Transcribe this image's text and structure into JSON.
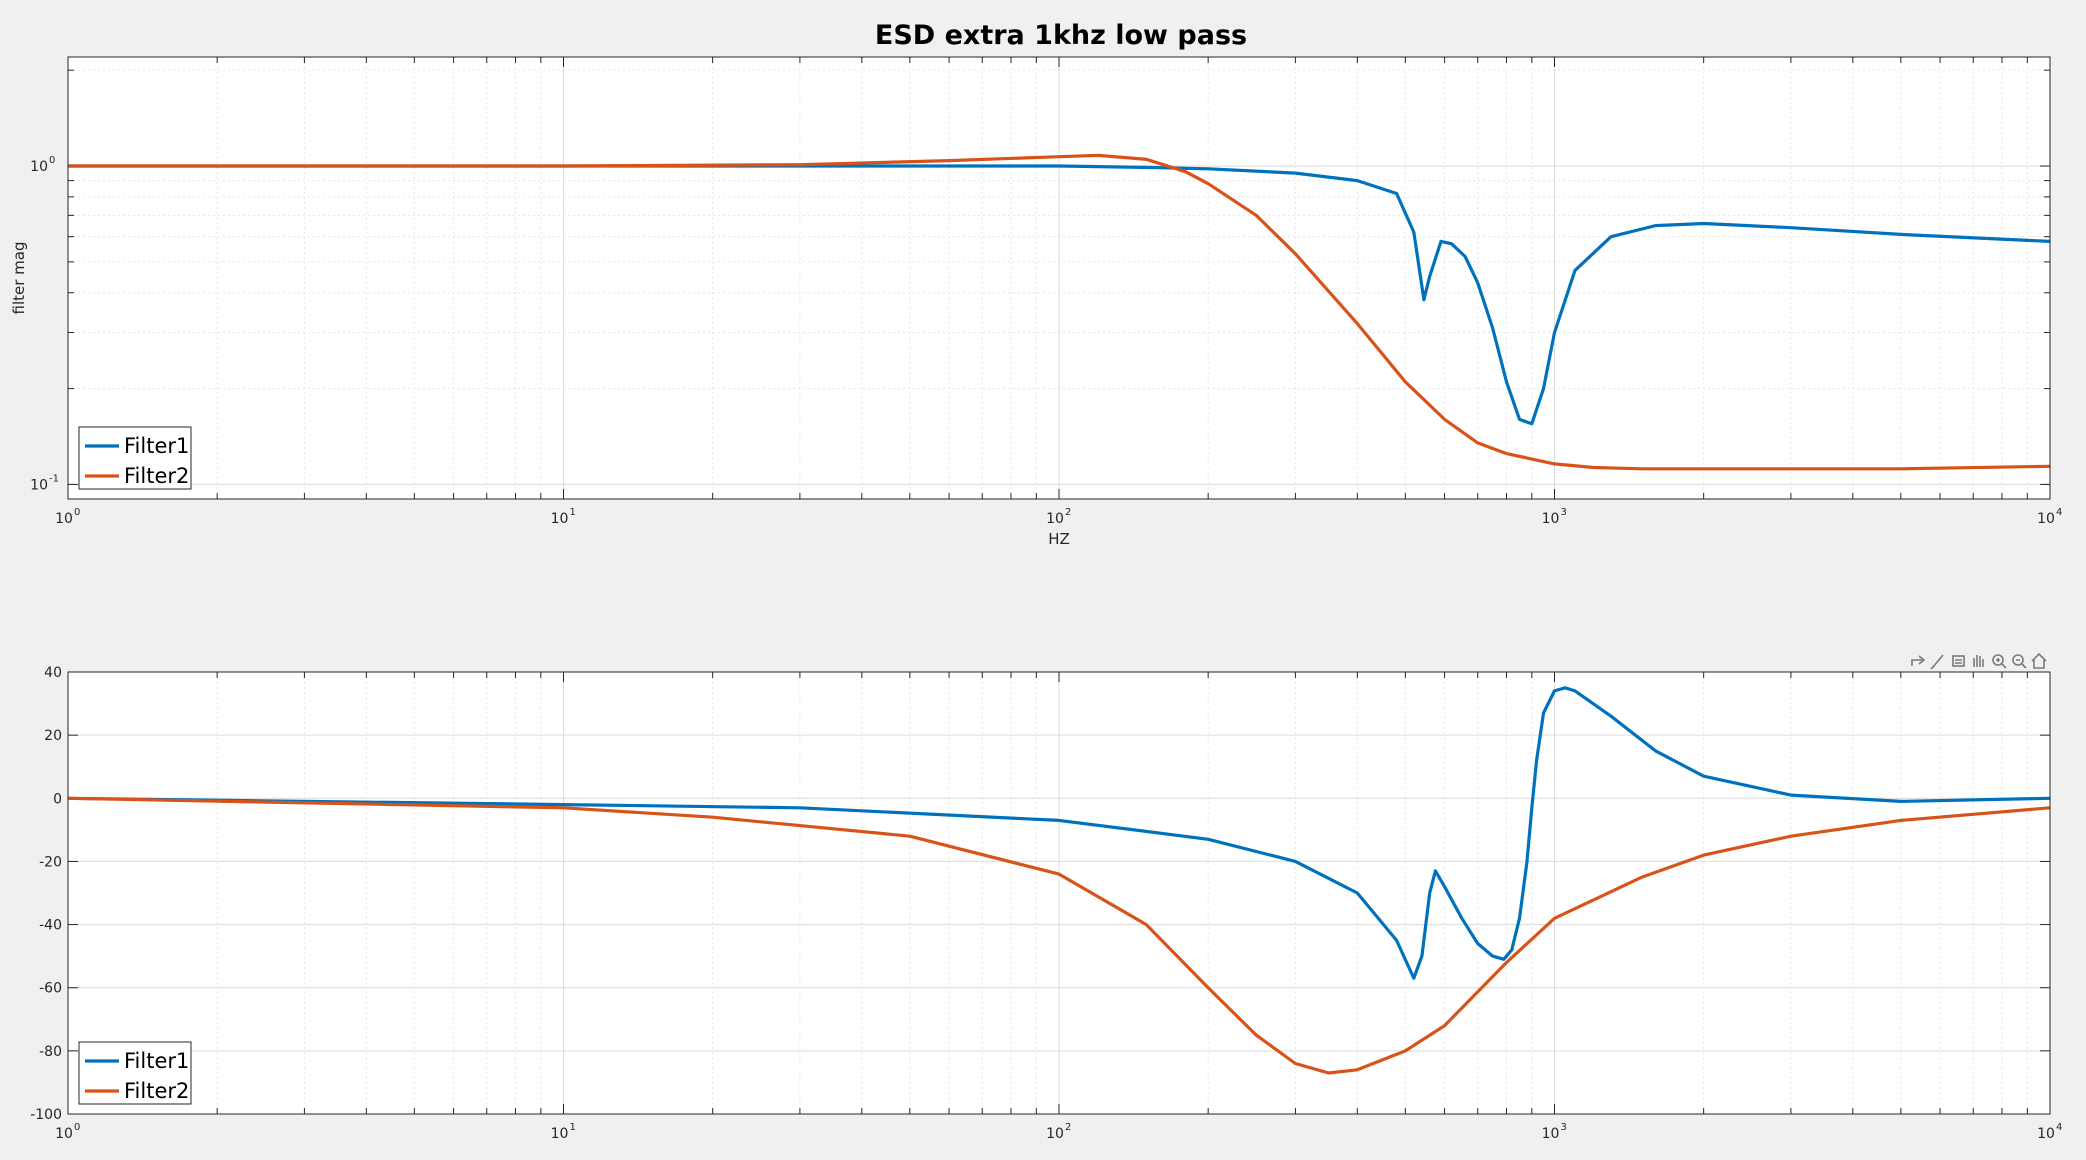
{
  "figure": {
    "title": "ESD extra 1khz low pass"
  },
  "colors": {
    "filter1": "#0072BD",
    "filter2": "#D95319",
    "grid": "#dcdcdc",
    "axes_bg": "#ffffff",
    "figure_bg": "#f0f0f0"
  },
  "toolbar": {
    "icons": [
      "export-icon",
      "brush-icon",
      "datatip-icon",
      "pan-icon",
      "zoom-in-icon",
      "zoom-out-icon",
      "home-icon"
    ]
  },
  "chart_data": [
    {
      "type": "line",
      "title": "ESD extra 1khz low pass",
      "xlabel": "HZ",
      "ylabel": "filter mag",
      "xscale": "log",
      "yscale": "log",
      "xlim": [
        1,
        10000
      ],
      "ylim": [
        0.09,
        2.2
      ],
      "x_ticks": [
        {
          "base": "10",
          "exp": "0"
        },
        {
          "base": "10",
          "exp": "1"
        },
        {
          "base": "10",
          "exp": "2"
        },
        {
          "base": "10",
          "exp": "3"
        },
        {
          "base": "10",
          "exp": "4"
        }
      ],
      "y_ticks": [
        {
          "base": "10",
          "exp": "-1",
          "value": 0.1
        },
        {
          "base": "10",
          "exp": "0",
          "value": 1
        }
      ],
      "grid": true,
      "legend": {
        "location": "bottom-left",
        "entries": [
          "Filter1",
          "Filter2"
        ]
      },
      "series": [
        {
          "name": "Filter1",
          "x": [
            1,
            10,
            50,
            100,
            150,
            200,
            300,
            400,
            480,
            520,
            545,
            560,
            590,
            620,
            660,
            700,
            750,
            800,
            850,
            900,
            950,
            1000,
            1100,
            1300,
            1600,
            2000,
            3000,
            5000,
            10000
          ],
          "y": [
            1.0,
            1.0,
            1.0,
            1.0,
            0.99,
            0.98,
            0.95,
            0.9,
            0.82,
            0.62,
            0.38,
            0.45,
            0.58,
            0.57,
            0.52,
            0.43,
            0.31,
            0.21,
            0.16,
            0.155,
            0.2,
            0.3,
            0.47,
            0.6,
            0.65,
            0.66,
            0.64,
            0.61,
            0.58
          ]
        },
        {
          "name": "Filter2",
          "x": [
            1,
            10,
            30,
            60,
            100,
            120,
            150,
            180,
            200,
            250,
            300,
            400,
            500,
            600,
            700,
            800,
            1000,
            1200,
            1500,
            2000,
            3000,
            5000,
            10000
          ],
          "y": [
            1.0,
            1.0,
            1.01,
            1.04,
            1.07,
            1.08,
            1.05,
            0.96,
            0.88,
            0.7,
            0.53,
            0.32,
            0.21,
            0.16,
            0.135,
            0.125,
            0.116,
            0.113,
            0.112,
            0.112,
            0.112,
            0.112,
            0.114
          ]
        }
      ]
    },
    {
      "type": "line",
      "title": "",
      "xlabel": "",
      "ylabel": "",
      "xscale": "log",
      "yscale": "linear",
      "xlim": [
        1,
        10000
      ],
      "ylim": [
        -100,
        40
      ],
      "x_ticks": [
        {
          "base": "10",
          "exp": "0"
        },
        {
          "base": "10",
          "exp": "1"
        },
        {
          "base": "10",
          "exp": "2"
        },
        {
          "base": "10",
          "exp": "3"
        },
        {
          "base": "10",
          "exp": "4"
        }
      ],
      "y_ticks": [
        {
          "label": "40",
          "value": 40
        },
        {
          "label": "20",
          "value": 20
        },
        {
          "label": "0",
          "value": 0
        },
        {
          "label": "-20",
          "value": -20
        },
        {
          "label": "-40",
          "value": -40
        },
        {
          "label": "-60",
          "value": -60
        },
        {
          "label": "-80",
          "value": -80
        },
        {
          "label": "-100",
          "value": -100
        }
      ],
      "grid": true,
      "legend": {
        "location": "bottom-left",
        "entries": [
          "Filter1",
          "Filter2"
        ]
      },
      "series": [
        {
          "name": "Filter1",
          "x": [
            1,
            10,
            30,
            100,
            200,
            300,
            400,
            480,
            520,
            540,
            560,
            575,
            600,
            650,
            700,
            750,
            790,
            820,
            850,
            880,
            900,
            920,
            950,
            1000,
            1050,
            1100,
            1300,
            1600,
            2000,
            3000,
            5000,
            10000
          ],
          "y": [
            0,
            -2,
            -3,
            -7,
            -13,
            -20,
            -30,
            -45,
            -57,
            -50,
            -30,
            -23,
            -28,
            -38,
            -46,
            -50,
            -51,
            -48,
            -38,
            -20,
            -3,
            12,
            27,
            34,
            35,
            34,
            26,
            15,
            7,
            1,
            -1,
            0
          ]
        },
        {
          "name": "Filter2",
          "x": [
            1,
            10,
            20,
            50,
            100,
            150,
            200,
            250,
            300,
            350,
            400,
            500,
            600,
            800,
            1000,
            1500,
            2000,
            3000,
            5000,
            10000
          ],
          "y": [
            0,
            -3,
            -6,
            -12,
            -24,
            -40,
            -60,
            -75,
            -84,
            -87,
            -86,
            -80,
            -72,
            -52,
            -38,
            -25,
            -18,
            -12,
            -7,
            -3
          ]
        }
      ]
    }
  ]
}
